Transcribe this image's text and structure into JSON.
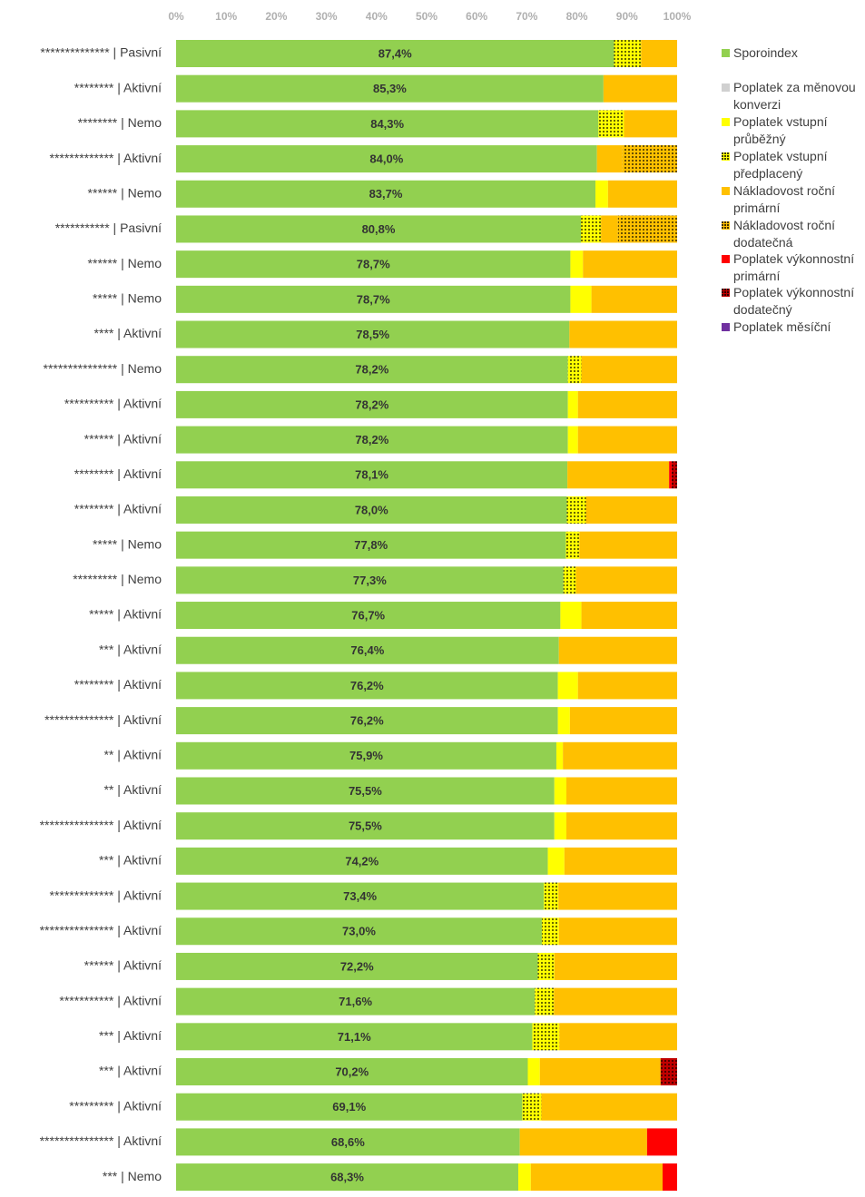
{
  "chart_data": {
    "type": "stacked_barh",
    "categories": [
      "************** | Pasivní",
      "******** | Aktivní",
      "******** | Nemo",
      "************* | Aktivní",
      "****** | Nemo",
      "*********** | Pasivní",
      "****** | Nemo",
      "***** | Nemo",
      "**** | Aktivní",
      "*************** | Nemo",
      "********** | Aktivní",
      "****** | Aktivní",
      "******** | Aktivní",
      "******** | Aktivní",
      "***** | Nemo",
      "********* | Nemo",
      "***** | Aktivní",
      "*** | Aktivní",
      "******** | Aktivní",
      "************** | Aktivní",
      "** | Aktivní",
      "** | Aktivní",
      "*************** | Aktivní",
      "*** | Aktivní",
      "************* | Aktivní",
      "*************** | Aktivní",
      "****** | Aktivní",
      "*********** | Aktivní",
      "*** | Aktivní",
      "*** | Aktivní",
      "********* | Aktivní",
      "*************** | Aktivní",
      "*** | Nemo"
    ],
    "series": [
      {
        "name": "Sporoindex",
        "color": "#92d050",
        "values": [
          87.4,
          85.3,
          84.3,
          84.0,
          83.7,
          80.8,
          78.7,
          78.7,
          78.5,
          78.2,
          78.2,
          78.2,
          78.1,
          78.0,
          77.8,
          77.3,
          76.7,
          76.4,
          76.2,
          76.2,
          75.9,
          75.5,
          75.5,
          74.2,
          73.4,
          73.0,
          72.2,
          71.6,
          71.1,
          70.2,
          69.1,
          68.6,
          68.3
        ],
        "value_labels": [
          "87,4%",
          "85,3%",
          "84,3%",
          "84,0%",
          "83,7%",
          "80,8%",
          "78,7%",
          "78,7%",
          "78,5%",
          "78,2%",
          "78,2%",
          "78,2%",
          "78,1%",
          "78,0%",
          "77,8%",
          "77,3%",
          "76,7%",
          "76,4%",
          "76,2%",
          "76,2%",
          "75,9%",
          "75,5%",
          "75,5%",
          "74,2%",
          "73,4%",
          "73,0%",
          "72,2%",
          "71,6%",
          "71,1%",
          "70,2%",
          "69,1%",
          "68,6%",
          "68,3%"
        ]
      },
      {
        "name": "Poplatek za měnovou konverzi",
        "color": "#d0d0d0",
        "values": [
          0,
          0,
          0,
          0,
          0,
          0,
          0,
          0,
          0,
          0,
          0,
          0,
          0,
          0,
          0,
          0,
          0,
          0,
          0,
          0,
          0,
          0,
          0,
          0,
          0,
          0,
          0,
          0,
          0,
          0,
          0,
          0,
          0
        ]
      },
      {
        "name": "Poplatek vstupní průběžný",
        "color": "#ffff00",
        "values": [
          0,
          0,
          0,
          0,
          2.5,
          0,
          2.5,
          4.2,
          0,
          0,
          2.0,
          2.0,
          0,
          0,
          0,
          0,
          4.2,
          0,
          4.0,
          2.4,
          1.3,
          2.4,
          2.4,
          3.3,
          0,
          0,
          0,
          0,
          0,
          2.4,
          0,
          0,
          2.5
        ]
      },
      {
        "name": "Poplatek vstupní předplacený",
        "color": "#ffff00",
        "pattern": "dotted",
        "values": [
          5.4,
          0,
          5.1,
          0,
          0,
          4.0,
          0,
          0,
          0,
          2.7,
          0,
          0,
          0,
          3.8,
          2.7,
          2.5,
          0,
          0,
          0,
          0,
          0,
          0,
          0,
          0,
          2.9,
          3.4,
          3.3,
          3.8,
          5.4,
          0,
          3.8,
          0,
          0
        ]
      },
      {
        "name": "Nákladovost roční primární",
        "color": "#ffc000",
        "values": [
          7.2,
          14.7,
          10.6,
          5.1,
          13.8,
          3.4,
          18.8,
          17.1,
          21.5,
          19.1,
          19.8,
          19.8,
          20.3,
          18.2,
          19.5,
          20.2,
          19.1,
          23.6,
          19.8,
          21.4,
          22.8,
          22.1,
          22.1,
          22.5,
          23.7,
          23.6,
          24.5,
          24.6,
          23.5,
          24.1,
          27.1,
          25.4,
          26.3
        ]
      },
      {
        "name": "Nákladovost roční dodatečná",
        "color": "#ffc000",
        "pattern": "dotted",
        "values": [
          0,
          0,
          0,
          10.9,
          0,
          11.8,
          0,
          0,
          0,
          0,
          0,
          0,
          0,
          0,
          0,
          0,
          0,
          0,
          0,
          0,
          0,
          0,
          0,
          0,
          0,
          0,
          0,
          0,
          0,
          0,
          0,
          0,
          0
        ]
      },
      {
        "name": "Poplatek výkonnostní primární",
        "color": "#ff0000",
        "values": [
          0,
          0,
          0,
          0,
          0,
          0,
          0,
          0,
          0,
          0,
          0,
          0,
          0.5,
          0,
          0,
          0,
          0,
          0,
          0,
          0,
          0,
          0,
          0,
          0,
          0,
          0,
          0,
          0,
          0,
          0,
          0,
          6.0,
          2.9
        ]
      },
      {
        "name": "Poplatek výkonnostní dodatečný",
        "color": "#c00000",
        "pattern": "dotted",
        "values": [
          0,
          0,
          0,
          0,
          0,
          0,
          0,
          0,
          0,
          0,
          0,
          0,
          1.1,
          0,
          0,
          0,
          0,
          0,
          0,
          0,
          0,
          0,
          0,
          0,
          0,
          0,
          0,
          0,
          0,
          3.3,
          0,
          0,
          0
        ]
      },
      {
        "name": "Poplatek měsíční",
        "color": "#7030a0",
        "values": [
          0,
          0,
          0,
          0,
          0,
          0,
          0,
          0,
          0,
          0,
          0,
          0,
          0,
          0,
          0,
          0,
          0,
          0,
          0,
          0,
          0,
          0,
          0,
          0,
          0,
          0,
          0,
          0,
          0,
          0,
          0,
          0,
          0
        ]
      }
    ],
    "xlim": [
      0,
      100
    ],
    "xticks": [
      {
        "value": 0,
        "label": "0%"
      },
      {
        "value": 10,
        "label": "10%"
      },
      {
        "value": 20,
        "label": "20%"
      },
      {
        "value": 30,
        "label": "30%"
      },
      {
        "value": 40,
        "label": "40%"
      },
      {
        "value": 50,
        "label": "50%"
      },
      {
        "value": 60,
        "label": "60%"
      },
      {
        "value": 70,
        "label": "70%"
      },
      {
        "value": 80,
        "label": "80%"
      },
      {
        "value": 90,
        "label": "90%"
      },
      {
        "value": 100,
        "label": "100%"
      }
    ],
    "grid": false,
    "legend": "right"
  }
}
